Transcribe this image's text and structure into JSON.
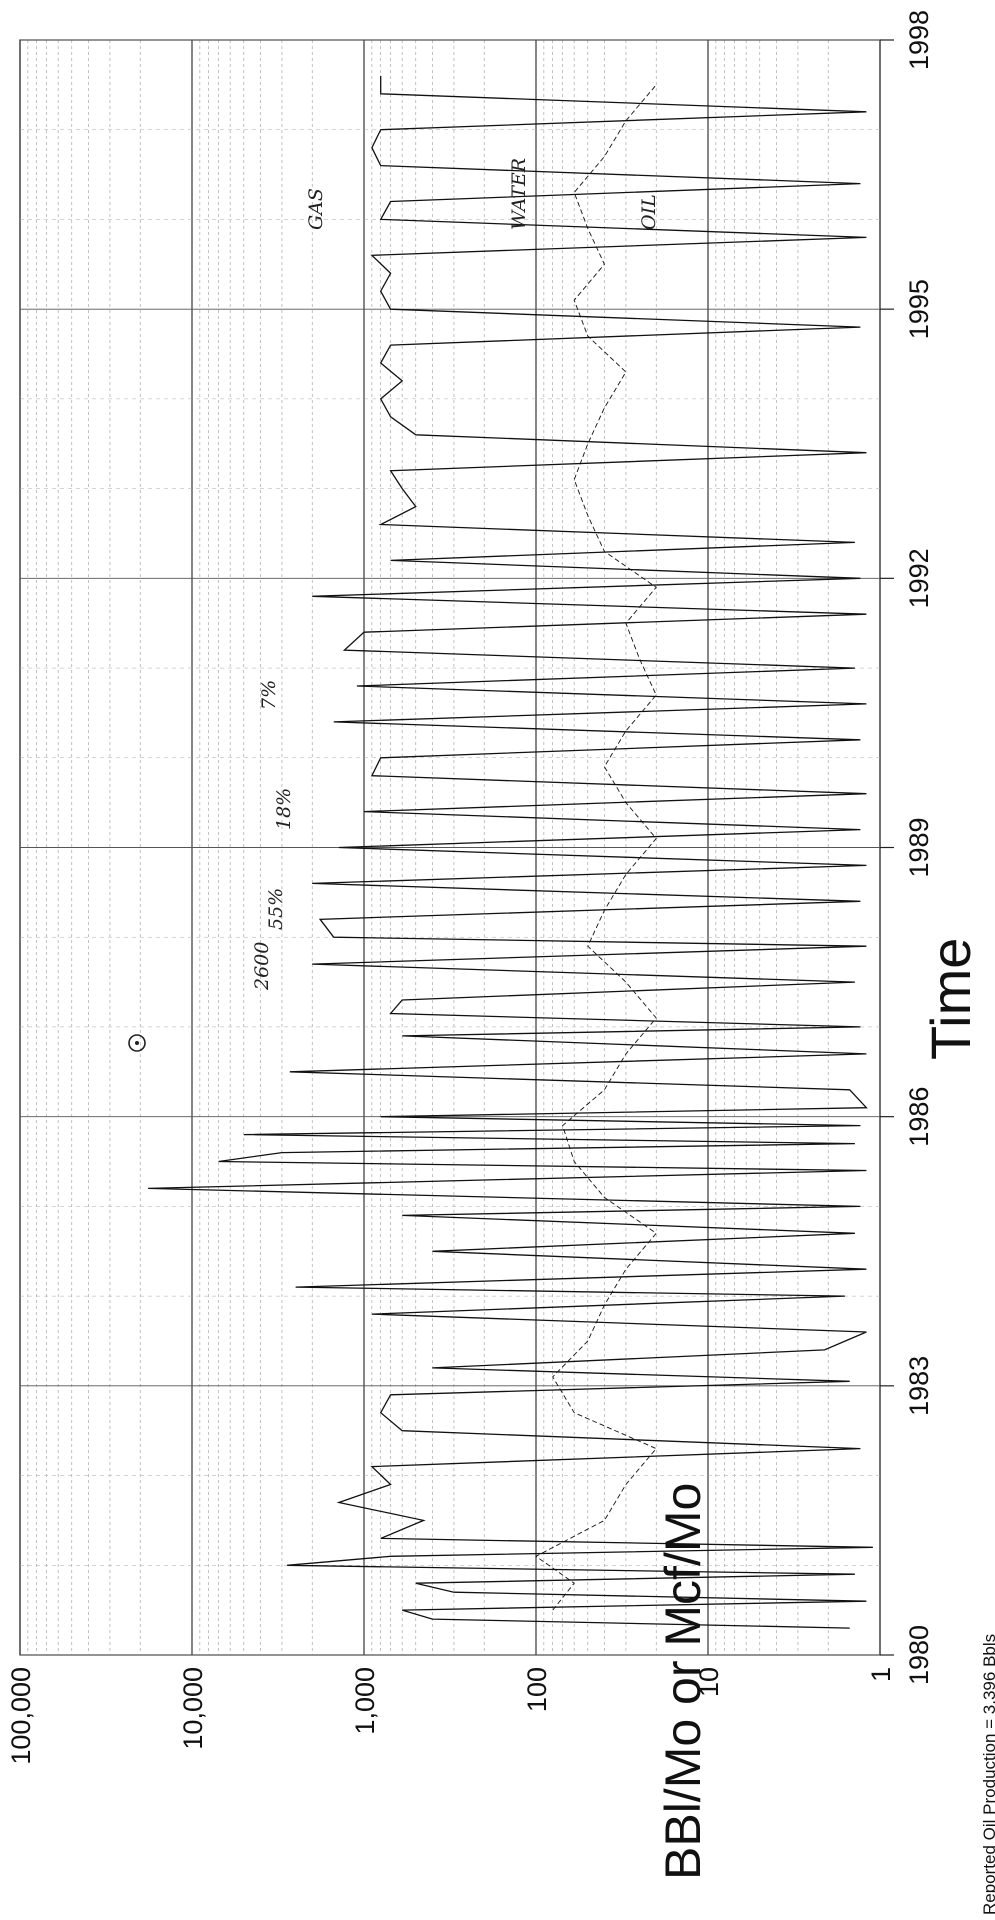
{
  "chart_data": {
    "type": "line",
    "orientation": "rotated-90-clockwise",
    "title": "",
    "xlabel": "Time",
    "ylabel": "BBl/Mo or Mcf/Mo",
    "yscale": "log",
    "ylim": [
      1,
      100000
    ],
    "xlim": [
      1980,
      1998
    ],
    "x_ticks": [
      "1980",
      "1983",
      "1986",
      "1989",
      "1992",
      "1995",
      "1998"
    ],
    "y_ticks": [
      "1",
      "10",
      "100",
      "1,000",
      "10,000",
      "100,000"
    ],
    "grid": true,
    "footer_text": "Reported Oil Production = 3,396 Bbls",
    "series": [
      {
        "role": "solid",
        "x": [
          1980.3,
          1980.4,
          1980.5,
          1980.6,
          1980.7,
          1980.8,
          1980.9,
          1981.0,
          1981.1,
          1981.2,
          1981.3,
          1981.5,
          1981.7,
          1981.9,
          1982.1,
          1982.3,
          1982.5,
          1982.7,
          1982.9,
          1983.05,
          1983.2,
          1983.4,
          1983.6,
          1983.8,
          1984.0,
          1984.1,
          1984.3,
          1984.5,
          1984.7,
          1984.9,
          1985.0,
          1985.2,
          1985.4,
          1985.5,
          1985.6,
          1985.7,
          1985.8,
          1985.9,
          1986.0,
          1986.1,
          1986.3,
          1986.5,
          1986.7,
          1986.9,
          1987.0,
          1987.15,
          1987.3,
          1987.5,
          1987.7,
          1987.9,
          1988.0,
          1988.2,
          1988.4,
          1988.6,
          1988.8,
          1989.0,
          1989.2,
          1989.4,
          1989.6,
          1989.8,
          1990.0,
          1990.2,
          1990.4,
          1990.6,
          1990.8,
          1991.0,
          1991.2,
          1991.4,
          1991.6,
          1991.8,
          1992.0,
          1992.2,
          1992.4,
          1992.6,
          1992.8,
          1993.0,
          1993.2,
          1993.4,
          1993.6,
          1993.8,
          1994.0,
          1994.2,
          1994.4,
          1994.6,
          1994.8,
          1995.0,
          1995.2,
          1995.4,
          1995.6,
          1995.8,
          1996.0,
          1996.2,
          1996.4,
          1996.6,
          1996.8,
          1997.0,
          1997.2,
          1997.4,
          1997.6
        ],
        "y": [
          1.5,
          400,
          600,
          1.2,
          300,
          500,
          1.4,
          2800,
          700,
          1.1,
          800,
          450,
          1400,
          700,
          900,
          1.3,
          600,
          800,
          700,
          1.5,
          400,
          2.1,
          1.2,
          900,
          1.6,
          2500,
          1.2,
          400,
          1.4,
          600,
          1.3,
          18000,
          1.2,
          7000,
          3000,
          1.4,
          5000,
          1.3,
          800,
          1.2,
          1.5,
          2700,
          1.2,
          600,
          1.3,
          700,
          600,
          1.4,
          2000,
          1.2,
          1500,
          1800,
          1.3,
          2000,
          1.2,
          1400,
          1.3,
          1000,
          1.2,
          900,
          800,
          1.3,
          1500,
          1.2,
          1100,
          1.4,
          1300,
          1000,
          1.2,
          2000,
          1.3,
          700,
          1.4,
          800,
          500,
          600,
          700,
          1.2,
          500,
          700,
          800,
          600,
          800,
          700,
          1.3,
          700,
          800,
          700,
          900,
          1.2,
          800,
          700,
          1.3,
          800,
          900,
          800,
          1.2,
          800,
          800
        ]
      },
      {
        "role": "dashed",
        "x": [
          1980.5,
          1980.8,
          1981.1,
          1981.5,
          1981.9,
          1982.3,
          1982.7,
          1983.1,
          1983.5,
          1983.9,
          1984.3,
          1984.7,
          1985.1,
          1985.5,
          1985.9,
          1986.3,
          1986.7,
          1987.1,
          1987.5,
          1987.9,
          1988.3,
          1988.7,
          1989.1,
          1989.5,
          1989.9,
          1990.3,
          1990.7,
          1991.1,
          1991.5,
          1991.9,
          1992.3,
          1992.7,
          1993.1,
          1993.5,
          1993.9,
          1994.3,
          1994.7,
          1995.1,
          1995.5,
          1995.9,
          1996.3,
          1996.7,
          1997.1,
          1997.5
        ],
        "y": [
          80,
          60,
          100,
          40,
          30,
          20,
          60,
          80,
          50,
          40,
          30,
          20,
          40,
          60,
          70,
          40,
          30,
          20,
          30,
          50,
          40,
          30,
          20,
          30,
          40,
          30,
          20,
          25,
          30,
          20,
          40,
          50,
          60,
          50,
          40,
          30,
          50,
          60,
          40,
          50,
          60,
          40,
          30,
          20
        ]
      }
    ],
    "annotations": [
      "2600",
      "55%",
      "18%",
      "7%",
      "GAS",
      "WATER",
      "OIL"
    ]
  }
}
